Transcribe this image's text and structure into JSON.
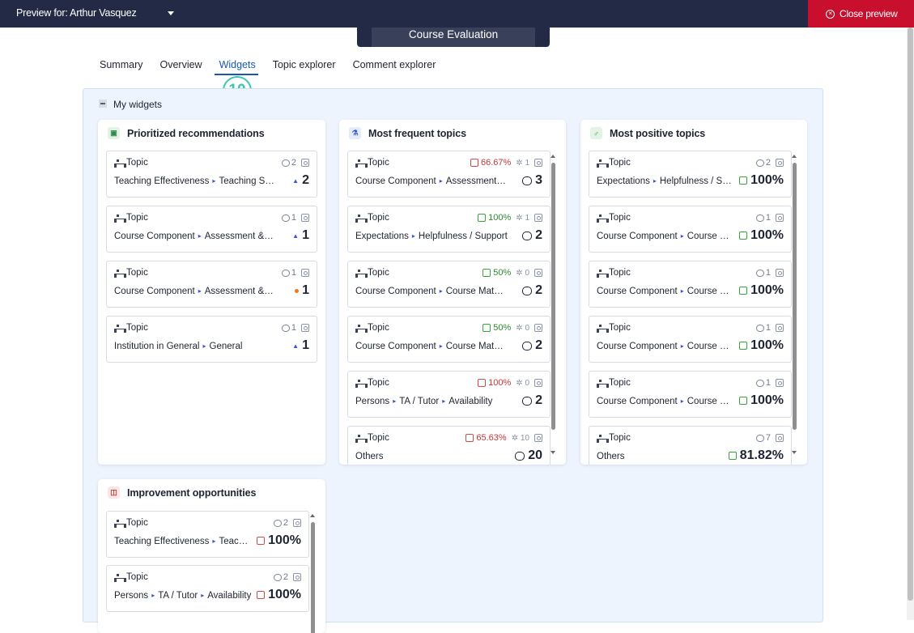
{
  "topbar": {
    "preview_for": "Preview for: Arthur Vasquez",
    "close_label": "Close preview",
    "course_title": "Course Evaluation",
    "colors": {
      "bar": "#232a45",
      "close": "#c8102e"
    }
  },
  "tabs": [
    "Summary",
    "Overview",
    "Widgets",
    "Topic explorer",
    "Comment explorer"
  ],
  "active_tab": "Widgets",
  "step_badge": "10",
  "section_title": "My widgets",
  "widgets": {
    "prioritized": {
      "title": "Prioritized recommendations",
      "cards": [
        {
          "type": "Topic",
          "comments": "2",
          "path": [
            "Teaching Effectiveness",
            "Teaching Style",
            "..."
          ],
          "value": "2",
          "marker": "tri"
        },
        {
          "type": "Topic",
          "comments": "1",
          "path": [
            "Course Component",
            "Assessment & Evaluation"
          ],
          "value": "1",
          "marker": "tri"
        },
        {
          "type": "Topic",
          "comments": "1",
          "path": [
            "Course Component",
            "Assessment & Evaluation"
          ],
          "value": "1",
          "marker": "dot"
        },
        {
          "type": "Topic",
          "comments": "1",
          "path": [
            "Institution in General",
            "General"
          ],
          "value": "1",
          "marker": "tri"
        }
      ]
    },
    "frequent": {
      "title": "Most frequent topics",
      "cards": [
        {
          "type": "Topic",
          "sentiment": "66.67%",
          "tone": "red",
          "ideas": "1",
          "path": [
            "Course Component",
            "Assessment & Evaluation"
          ],
          "value": "3"
        },
        {
          "type": "Topic",
          "sentiment": "100%",
          "tone": "green",
          "ideas": "1",
          "path": [
            "Expectations",
            "Helpfulness / Support"
          ],
          "value": "2"
        },
        {
          "type": "Topic",
          "sentiment": "50%",
          "tone": "green",
          "ideas": "0",
          "path": [
            "Course Component",
            "Course Material & Resources"
          ],
          "value": "2"
        },
        {
          "type": "Topic",
          "sentiment": "50%",
          "tone": "green",
          "ideas": "0",
          "path": [
            "Course Component",
            "Course Material & Resources"
          ],
          "value": "2"
        },
        {
          "type": "Topic",
          "sentiment": "100%",
          "tone": "red",
          "ideas": "0",
          "path": [
            "Persons",
            "TA / Tutor",
            "Availability"
          ],
          "value": "2"
        },
        {
          "type": "Topic",
          "sentiment": "65.63%",
          "tone": "red",
          "ideas": "10",
          "path": [
            "Others"
          ],
          "value": "20"
        }
      ]
    },
    "positive": {
      "title": "Most positive topics",
      "cards": [
        {
          "type": "Topic",
          "comments": "2",
          "path": [
            "Expectations",
            "Helpfulness / Support"
          ],
          "value": "100%"
        },
        {
          "type": "Topic",
          "comments": "1",
          "path": [
            "Course Component",
            "Course Material & Resources"
          ],
          "value": "100%"
        },
        {
          "type": "Topic",
          "comments": "1",
          "path": [
            "Course Component",
            "Course Material & Resources"
          ],
          "value": "100%"
        },
        {
          "type": "Topic",
          "comments": "1",
          "path": [
            "Course Component",
            "Course Material & Resources"
          ],
          "value": "100%"
        },
        {
          "type": "Topic",
          "comments": "1",
          "path": [
            "Course Component",
            "Course Material & Resources"
          ],
          "value": "100%"
        },
        {
          "type": "Topic",
          "comments": "7",
          "path": [
            "Others"
          ],
          "value": "81.82%"
        }
      ]
    },
    "improvement": {
      "title": "Improvement opportunities",
      "cards": [
        {
          "type": "Topic",
          "comments": "2",
          "path": [
            "Teaching Effectiveness",
            "Teaching Style"
          ],
          "value": "100%"
        },
        {
          "type": "Topic",
          "comments": "2",
          "path": [
            "Persons",
            "TA / Tutor",
            "Availability"
          ],
          "value": "100%"
        }
      ]
    }
  }
}
